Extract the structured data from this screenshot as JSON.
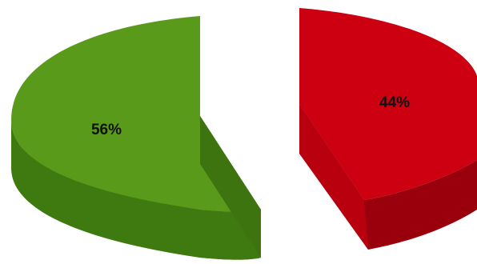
{
  "chart_data": {
    "type": "pie",
    "title": "",
    "exploded": true,
    "three_d": true,
    "slices": [
      {
        "name": "",
        "value": 56,
        "label": "56%",
        "color": "#5a9a1a",
        "side_color": "#3f7a10"
      },
      {
        "name": "",
        "value": 44,
        "label": "44%",
        "color": "#cc0010",
        "side_color": "#9a000c"
      }
    ]
  }
}
